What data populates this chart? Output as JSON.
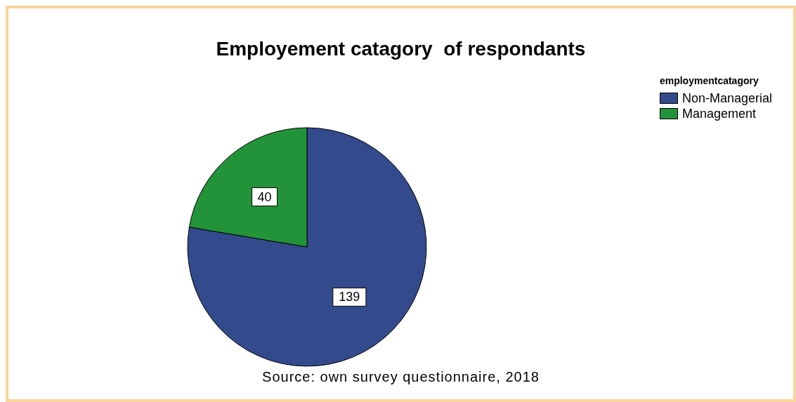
{
  "chart_data": {
    "type": "pie",
    "title": "Employement catagory  of respondants",
    "legend_title": "employmentcatagory",
    "categories": [
      "Non-Managerial",
      "Management"
    ],
    "values": [
      139,
      40
    ],
    "colors": [
      "#334a8c",
      "#23933a"
    ],
    "data_labels": true,
    "legend": "top right",
    "annotations": [
      "Source: own survey questionnaire, 2018"
    ]
  }
}
